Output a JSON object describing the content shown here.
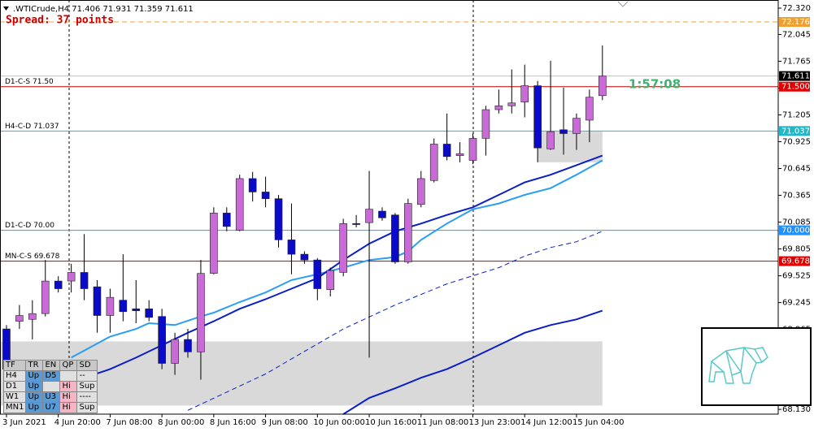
{
  "chart_data": {
    "type": "candlestick",
    "title": ".WTICrude,H4  71.406 71.931 71.359 71.611",
    "subtitle": "Spread: 37 points",
    "countdown": "1:57:08",
    "up_color": "#c86bd6",
    "down_color": "#0a0ac8",
    "ylim": [
      68.08,
      72.405
    ],
    "xlim": [
      -0.5,
      59.57
    ],
    "yticks": [
      {
        "value": 72.32,
        "label": "72.320"
      },
      72.045,
      71.765,
      71.485,
      71.205,
      70.925,
      70.645,
      70.365,
      70.085,
      69.805,
      69.525,
      69.245,
      68.965,
      {
        "value": 68.69,
        "label": "68.690"
      },
      {
        "value": 68.41,
        "label": "68.410"
      },
      {
        "value": 68.13,
        "label": "68.130"
      }
    ],
    "xticks": [
      {
        "value": 0,
        "label": "3 Jun 2021"
      },
      {
        "value": 4,
        "label": "4 Jun 20:00"
      },
      {
        "value": 8,
        "label": "7 Jun 08:00"
      },
      {
        "value": 12,
        "label": "8 Jun 00:00"
      },
      {
        "value": 16,
        "label": "8 Jun 16:00"
      },
      {
        "value": 20,
        "label": "9 Jun 08:00"
      },
      {
        "value": 24,
        "label": "10 Jun 00:00"
      },
      {
        "value": 28,
        "label": "10 Jun 16:00"
      },
      {
        "value": 32,
        "label": "11 Jun 08:00"
      },
      {
        "value": 36,
        "label": "13 Jun 23:00"
      },
      {
        "value": 40,
        "label": "14 Jun 12:00"
      },
      {
        "value": 44,
        "label": "15 Jun 04:00"
      }
    ],
    "candles": {
      "open": [
        68.97,
        69.05,
        69.07,
        69.13,
        69.47,
        69.47,
        69.56,
        69.41,
        69.11,
        69.27,
        69.18,
        69.18,
        69.1,
        68.61,
        68.86,
        68.73,
        69.55,
        70.18,
        70.0,
        70.54,
        70.4,
        70.33,
        69.9,
        69.75,
        69.69,
        69.38,
        69.56,
        70.07,
        70.08,
        70.2,
        70.16,
        69.67,
        70.27,
        70.52,
        70.9,
        70.78,
        70.73,
        70.96,
        71.26,
        71.3,
        71.34,
        71.51,
        70.85,
        71.05,
        71.01,
        71.15,
        71.406
      ],
      "high": [
        69.01,
        69.22,
        69.27,
        69.69,
        69.52,
        69.65,
        69.96,
        69.48,
        69.39,
        69.75,
        69.48,
        69.27,
        69.18,
        68.93,
        68.97,
        69.69,
        70.24,
        70.24,
        70.58,
        70.61,
        70.56,
        70.37,
        70.28,
        69.78,
        69.71,
        69.61,
        70.12,
        70.16,
        70.62,
        70.24,
        70.18,
        70.33,
        70.62,
        70.96,
        71.22,
        70.92,
        71.01,
        71.3,
        71.47,
        71.68,
        71.73,
        71.56,
        71.77,
        71.49,
        71.22,
        71.47,
        71.931
      ],
      "low": [
        68.5,
        68.97,
        68.86,
        69.1,
        69.35,
        69.35,
        69.27,
        68.93,
        68.93,
        69.05,
        69.03,
        69.05,
        68.55,
        68.49,
        68.67,
        68.44,
        69.54,
        69.99,
        69.99,
        70.3,
        70.24,
        69.82,
        69.54,
        69.65,
        69.27,
        69.31,
        69.52,
        70.03,
        68.67,
        70.1,
        69.65,
        69.65,
        70.24,
        70.5,
        70.73,
        70.71,
        70.69,
        70.78,
        71.22,
        71.22,
        71.18,
        70.71,
        70.84,
        70.79,
        70.84,
        70.92,
        71.359
      ],
      "close": [
        68.55,
        69.11,
        69.13,
        69.47,
        69.39,
        69.56,
        69.39,
        69.11,
        69.3,
        69.15,
        69.16,
        69.09,
        68.61,
        68.86,
        68.73,
        69.55,
        70.18,
        70.04,
        70.54,
        70.4,
        70.33,
        69.9,
        69.75,
        69.69,
        69.39,
        69.58,
        70.07,
        70.06,
        70.22,
        70.13,
        69.67,
        70.28,
        70.54,
        70.9,
        70.77,
        70.8,
        70.96,
        71.26,
        71.3,
        71.33,
        71.51,
        70.86,
        71.03,
        71.01,
        71.17,
        71.39,
        71.611
      ]
    },
    "averages": [
      {
        "color": "#2a9df4",
        "dashed": false,
        "x": [
          5,
          8,
          10,
          11,
          13,
          15,
          16,
          18,
          20,
          22,
          24,
          26,
          28,
          30,
          31,
          32,
          34,
          36,
          38,
          40,
          42,
          44,
          46
        ],
        "values": [
          68.67,
          68.89,
          68.97,
          69.03,
          69.01,
          69.1,
          69.14,
          69.25,
          69.35,
          69.48,
          69.54,
          69.61,
          69.69,
          69.72,
          69.78,
          69.9,
          70.07,
          70.22,
          70.28,
          70.37,
          70.44,
          70.58,
          70.73
        ]
      },
      {
        "color": "#0a1ec8",
        "dashed": false,
        "x": [
          6,
          8,
          10,
          12,
          14,
          16,
          18,
          20,
          22,
          24,
          26,
          28,
          30,
          32,
          34,
          36,
          38,
          40,
          42,
          44,
          46
        ],
        "values": [
          68.46,
          68.55,
          68.67,
          68.8,
          68.93,
          69.05,
          69.18,
          69.28,
          69.39,
          69.5,
          69.69,
          69.86,
          69.99,
          70.07,
          70.16,
          70.24,
          70.37,
          70.5,
          70.58,
          70.68,
          70.78
        ]
      },
      {
        "color": "#0a1ec8",
        "dashed": true,
        "x": [
          14,
          20,
          26,
          30,
          34,
          38,
          40,
          42,
          44,
          46
        ],
        "values": [
          68.12,
          68.5,
          68.97,
          69.22,
          69.44,
          69.61,
          69.73,
          69.82,
          69.88,
          69.99
        ]
      },
      {
        "color": "#0a1ec8",
        "dashed": false,
        "x": [
          26,
          28,
          30,
          32,
          34,
          36,
          38,
          40,
          42,
          44,
          46
        ],
        "values": [
          68.08,
          68.25,
          68.35,
          68.46,
          68.55,
          68.67,
          68.8,
          68.93,
          69.01,
          69.07,
          69.16
        ]
      }
    ],
    "zones": [
      {
        "x": [
          -0.5,
          46
        ],
        "y": [
          68.17,
          68.84
        ],
        "color": "#d9d9d9"
      },
      {
        "x": [
          41,
          46
        ],
        "y": [
          70.71,
          71.03
        ],
        "color": "#d9d9d9"
      }
    ],
    "levels": [
      {
        "level": {
          "value": 72.176,
          "label": "72.176"
        },
        "color": "#f0a030",
        "box": "#f0a030",
        "dashed": true
      },
      {
        "level": {
          "value": 71.611,
          "label": "71.611"
        },
        "color": "#c0c0c0",
        "box": "#000000",
        "dashed": false
      },
      {
        "name": "D1-C-S 71.50",
        "level": {
          "value": 71.5,
          "label": "71.500"
        },
        "color": "#c00000",
        "box": "#e00000",
        "dashed": false
      },
      {
        "name": "H4-C-D 71.037",
        "level": {
          "value": 71.037,
          "label": "71.037"
        },
        "color": "#20b8c8",
        "box": "#20b8c8",
        "dashed": false
      },
      {
        "name": "D1-C-D 70.00",
        "level": {
          "value": 70.0,
          "label": "70.000"
        },
        "color": "#20a8d8",
        "box": "#1e90ff",
        "dashed": false
      },
      {
        "name": "MN-C-S 69.678",
        "level": {
          "value": 69.678,
          "label": "69.678"
        },
        "color": "#c00000",
        "box": "#e00000",
        "dashed": false
      }
    ]
  },
  "table": {
    "columns": [
      "TF",
      "TR",
      "EN",
      "QP",
      "SD"
    ],
    "rows": [
      [
        "H4",
        "Up",
        "D5",
        null,
        "--"
      ],
      [
        "D1",
        "Up",
        null,
        "Hi",
        "Sup"
      ],
      [
        "W1",
        "Up",
        "U3",
        "Hi",
        "----"
      ],
      [
        "MN1",
        "Up",
        "U7",
        "Hi",
        "Sup"
      ]
    ]
  }
}
